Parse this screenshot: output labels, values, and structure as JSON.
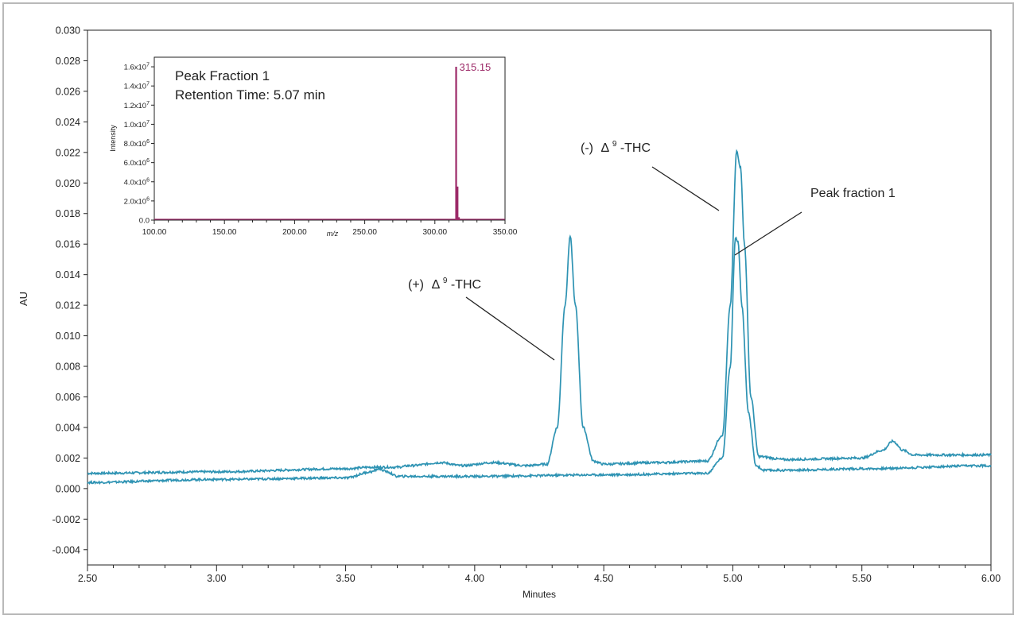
{
  "chart_data": [
    {
      "type": "line",
      "xlabel": "Minutes",
      "ylabel": "AU",
      "xlim": [
        2.5,
        6.0
      ],
      "ylim": [
        -0.005,
        0.03
      ],
      "xticks": [
        "2.50",
        "3.00",
        "3.50",
        "4.00",
        "4.50",
        "5.00",
        "5.50",
        "6.00"
      ],
      "yticks": [
        "-0.004",
        "-0.002",
        "0.000",
        "0.002",
        "0.004",
        "0.006",
        "0.008",
        "0.010",
        "0.012",
        "0.014",
        "0.016",
        "0.018",
        "0.020",
        "0.022",
        "0.024",
        "0.026",
        "0.028",
        "0.030"
      ],
      "line_color": "#2e93b3",
      "series": [
        {
          "x": [
            2.5,
            3.0,
            3.5,
            3.6,
            3.64,
            3.7,
            3.75,
            3.87,
            3.95,
            4.07,
            4.2,
            4.28,
            4.32,
            4.35,
            4.37,
            4.39,
            4.42,
            4.46,
            4.5,
            4.7,
            4.9,
            4.96,
            4.99,
            5.015,
            5.03,
            5.045,
            5.07,
            5.1,
            5.2,
            5.5,
            5.58,
            5.62,
            5.66,
            5.7,
            6.0
          ],
          "y": [
            0.001,
            0.0011,
            0.0013,
            0.0014,
            0.0014,
            0.0014,
            0.0015,
            0.0017,
            0.0015,
            0.0017,
            0.0015,
            0.0016,
            0.004,
            0.012,
            0.0165,
            0.012,
            0.004,
            0.0018,
            0.0016,
            0.0017,
            0.0018,
            0.0035,
            0.012,
            0.0221,
            0.021,
            0.016,
            0.006,
            0.0021,
            0.0019,
            0.002,
            0.0025,
            0.0031,
            0.0025,
            0.0022,
            0.0022
          ]
        },
        {
          "x": [
            2.5,
            3.0,
            3.5,
            3.6,
            3.63,
            3.66,
            3.7,
            4.0,
            4.5,
            4.9,
            4.96,
            4.99,
            5.01,
            5.02,
            5.035,
            5.06,
            5.09,
            5.12,
            5.2,
            5.5,
            6.0
          ],
          "y": [
            0.0004,
            0.0006,
            0.0007,
            0.0011,
            0.0013,
            0.0011,
            0.0008,
            0.0008,
            0.0009,
            0.001,
            0.002,
            0.008,
            0.0164,
            0.0162,
            0.012,
            0.005,
            0.0015,
            0.0012,
            0.0012,
            0.0013,
            0.0015
          ]
        }
      ],
      "annotations": {
        "plus_prefix": "(+)",
        "minus_prefix": "(-)",
        "delta": "Δ",
        "sup": "9",
        "thc": "-THC",
        "peak_fraction": "Peak fraction 1"
      }
    },
    {
      "type": "bar",
      "xlabel": "m/z",
      "ylabel": "Intensity",
      "xlim": [
        100,
        350
      ],
      "ylim": [
        0,
        17000000
      ],
      "xticks": [
        "100.00",
        "150.00",
        "200.00",
        "250.00",
        "300.00",
        "350.00"
      ],
      "ytick_values": [
        0,
        2000000,
        4000000,
        6000000,
        8000000,
        10000000,
        12000000,
        14000000,
        16000000
      ],
      "ytick_labels": [
        {
          "base": "0.0",
          "exp": ""
        },
        {
          "base": "2.0x10",
          "exp": "6"
        },
        {
          "base": "4.0x10",
          "exp": "6"
        },
        {
          "base": "6.0x10",
          "exp": "6"
        },
        {
          "base": "8.0x10",
          "exp": "6"
        },
        {
          "base": "1.0x10",
          "exp": "7"
        },
        {
          "base": "1.2x10",
          "exp": "7"
        },
        {
          "base": "1.4x10",
          "exp": "7"
        },
        {
          "base": "1.6x10",
          "exp": "7"
        }
      ],
      "peaks": [
        {
          "mz": 315.15,
          "intensity": 16000000
        },
        {
          "mz": 316.15,
          "intensity": 3500000
        },
        {
          "mz": 317.15,
          "intensity": 300000
        }
      ],
      "peak_label": "315.15",
      "bar_color": "#9c2a68",
      "title_line1": "Peak Fraction 1",
      "title_line2": "Retention Time: 5.07 min"
    }
  ]
}
